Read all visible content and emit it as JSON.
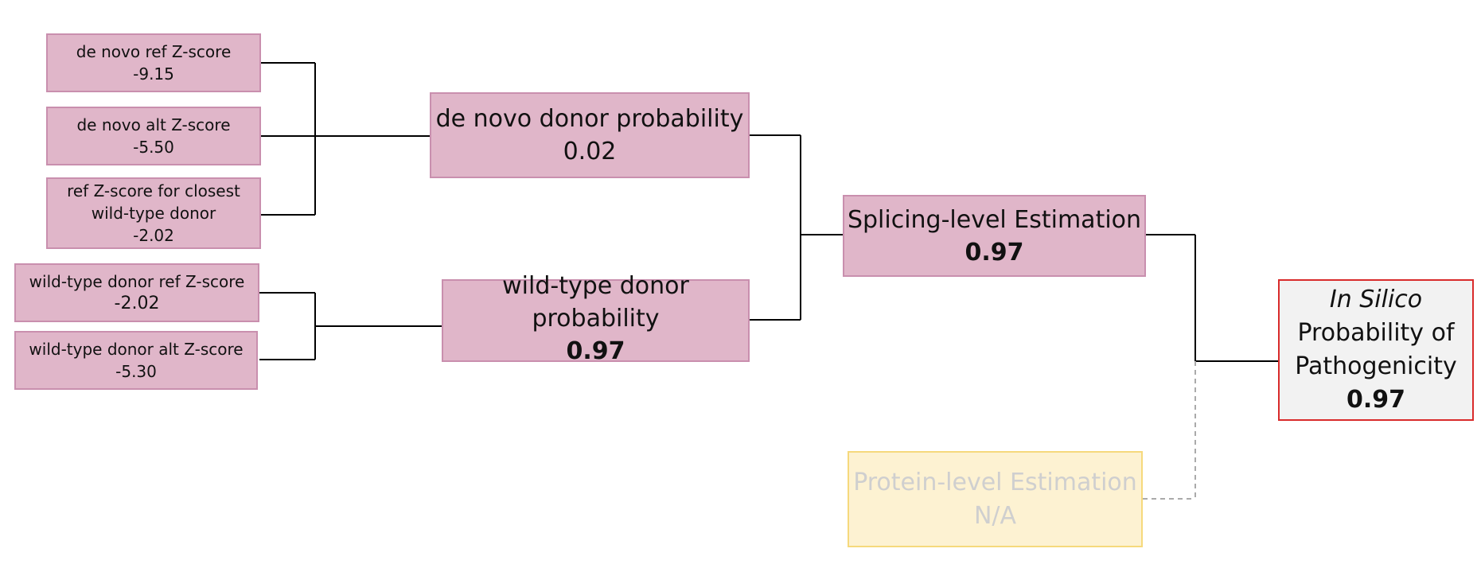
{
  "inputs": [
    {
      "label": "de novo ref Z-score",
      "value": "-9.15"
    },
    {
      "label": "de novo alt Z-score",
      "value": "-5.50"
    },
    {
      "label_line1": "ref Z-score for closest",
      "label_line2": "wild-type donor",
      "value": "-2.02"
    },
    {
      "label": "wild-type donor ref Z-score",
      "value": "-2.02"
    },
    {
      "label": "wild-type donor alt Z-score",
      "value": "-5.30"
    }
  ],
  "de_novo": {
    "label": "de novo donor probability",
    "value": "0.02"
  },
  "wild_type": {
    "label_line1": "wild-type donor",
    "label_line2": "probability",
    "value": "0.97"
  },
  "splicing": {
    "label": "Splicing-level Estimation",
    "value": "0.97"
  },
  "protein": {
    "label": "Protein-level Estimation",
    "value": "N/A"
  },
  "final": {
    "italic": "In Silico",
    "line2": "Probability of",
    "line3": "Pathogenicity",
    "value": "0.97"
  }
}
